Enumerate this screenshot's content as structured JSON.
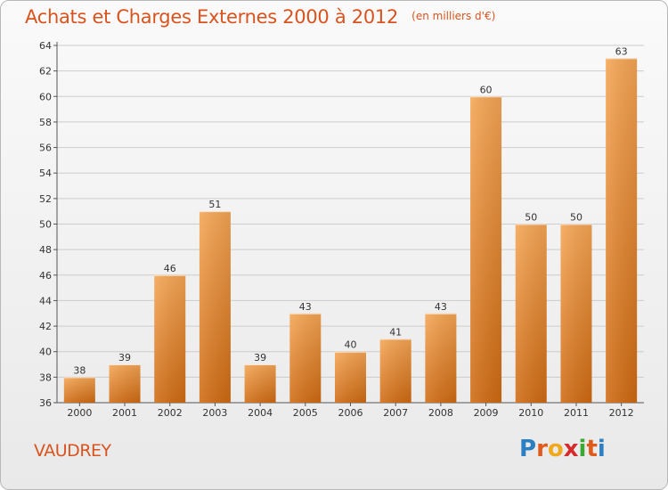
{
  "header": {
    "title": "Achats et Charges Externes 2000 à 2012",
    "unit": "(en milliers d'€)"
  },
  "footer": {
    "location": "VAUDREY",
    "logo_text": "Proxiti",
    "logo_colors": [
      "#2b7fc4",
      "#e05a1a",
      "#f0a81c",
      "#d62b2b",
      "#3aa832",
      "#e05a1a",
      "#2b7fc4"
    ]
  },
  "colors": {
    "bar_top": "#f5a554",
    "bar_bottom": "#cf6a12",
    "accent": "#d9531e",
    "grid": "#cccccc"
  },
  "chart_data": {
    "type": "bar",
    "title": "Achats et Charges Externes 2000 à 2012",
    "subtitle": "(en milliers d'€)",
    "xlabel": "",
    "ylabel": "",
    "categories": [
      "2000",
      "2001",
      "2002",
      "2003",
      "2004",
      "2005",
      "2006",
      "2007",
      "2008",
      "2009",
      "2010",
      "2011",
      "2012"
    ],
    "values": [
      38,
      39,
      46,
      51,
      39,
      43,
      40,
      41,
      43,
      60,
      50,
      50,
      63
    ],
    "ylim": [
      36,
      64
    ],
    "yticks": [
      36,
      38,
      40,
      42,
      44,
      46,
      48,
      50,
      52,
      54,
      56,
      58,
      60,
      62,
      64
    ],
    "grid": true,
    "legend": "none"
  }
}
